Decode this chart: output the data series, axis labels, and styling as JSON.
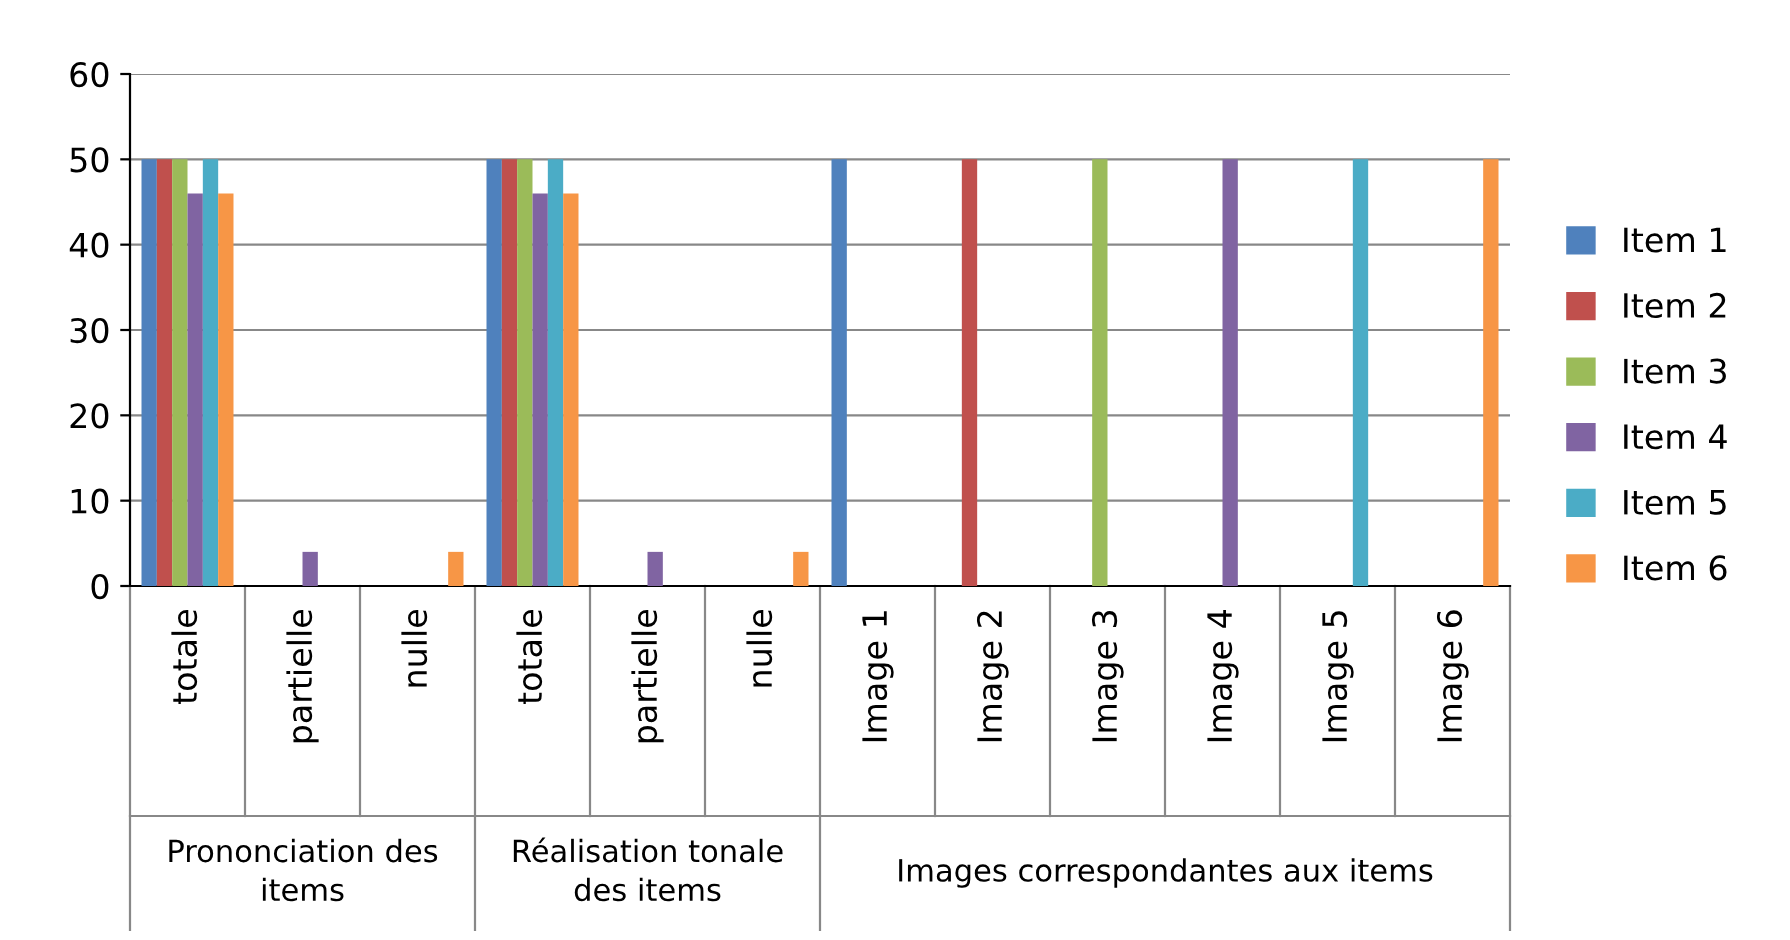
{
  "chart_data": {
    "type": "bar",
    "categories": [
      "totale",
      "partielle",
      "nulle",
      "totale",
      "partielle",
      "nulle",
      "Image 1",
      "Image 2",
      "Image 3",
      "Image 4",
      "Image 5",
      "Image 6"
    ],
    "series": [
      {
        "name": "Item 1",
        "color": "#4f81bd",
        "values": [
          50,
          0,
          0,
          50,
          0,
          0,
          50,
          0,
          0,
          0,
          0,
          0
        ]
      },
      {
        "name": "Item 2",
        "color": "#c0504d",
        "values": [
          50,
          0,
          0,
          50,
          0,
          0,
          0,
          50,
          0,
          0,
          0,
          0
        ]
      },
      {
        "name": "Item 3",
        "color": "#9bbb59",
        "values": [
          50,
          0,
          0,
          50,
          0,
          0,
          0,
          0,
          50,
          0,
          0,
          0
        ]
      },
      {
        "name": "Item 4",
        "color": "#8064a2",
        "values": [
          46,
          4,
          0,
          46,
          4,
          0,
          0,
          0,
          0,
          50,
          0,
          0
        ]
      },
      {
        "name": "Item 5",
        "color": "#4bacc6",
        "values": [
          50,
          0,
          0,
          50,
          0,
          0,
          0,
          0,
          0,
          0,
          50,
          0
        ]
      },
      {
        "name": "Item 6",
        "color": "#f79646",
        "values": [
          46,
          0,
          4,
          46,
          0,
          4,
          0,
          0,
          0,
          0,
          0,
          50
        ]
      }
    ],
    "annotations": [
      "Prononciation des items",
      "Réalisation tonale des items",
      "Images correspondantes aux items"
    ],
    "ylim": [
      0,
      60
    ],
    "yticks": [
      0,
      10,
      20,
      30,
      40,
      50,
      60
    ],
    "grid": "y",
    "legend": "right"
  }
}
